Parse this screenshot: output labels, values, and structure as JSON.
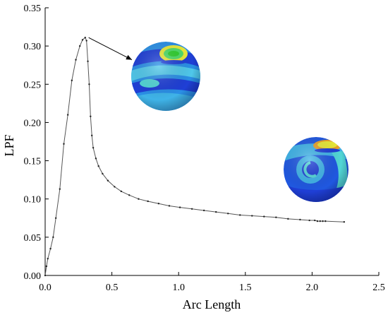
{
  "colors": {
    "line": "#555555",
    "marker": "#222222",
    "axis": "#000000",
    "sphere_dark": "#1f3fd6",
    "sphere_mid": "#2f7fe6",
    "sphere_light": "#3fb3e8",
    "sphere_cyan": "#52d6d6",
    "sphere_green": "#4fdc6a",
    "sphere_yellow": "#e8e83a",
    "sphere_orange": "#e8a12a"
  },
  "chart_data": {
    "type": "line",
    "title": "",
    "xlabel": "Arc Length",
    "ylabel": "LPF",
    "xlim": [
      0.0,
      2.5
    ],
    "ylim": [
      0.0,
      0.35
    ],
    "xticks": [
      "0.0",
      "0.5",
      "1.0",
      "1.5",
      "2.0",
      "2.5"
    ],
    "yticks": [
      "0.00",
      "0.05",
      "0.10",
      "0.15",
      "0.20",
      "0.25",
      "0.30",
      "0.35"
    ],
    "grid": false,
    "legend": "none",
    "series": [
      {
        "x": [
          0.0,
          0.01,
          0.02,
          0.04,
          0.06,
          0.08,
          0.11,
          0.14,
          0.17,
          0.2,
          0.23,
          0.26,
          0.28,
          0.3,
          0.31,
          0.32,
          0.33,
          0.34,
          0.35,
          0.36,
          0.38,
          0.4,
          0.43,
          0.47,
          0.52,
          0.57,
          0.63,
          0.7,
          0.77,
          0.85,
          0.93,
          1.01,
          1.1,
          1.19,
          1.28,
          1.37,
          1.46,
          1.55,
          1.64,
          1.73,
          1.82,
          1.91,
          1.98,
          2.02,
          2.04,
          2.06,
          2.08,
          2.1,
          2.24
        ],
        "y": [
          0.0,
          0.012,
          0.022,
          0.035,
          0.05,
          0.075,
          0.113,
          0.172,
          0.21,
          0.255,
          0.282,
          0.3,
          0.308,
          0.311,
          0.307,
          0.28,
          0.25,
          0.208,
          0.183,
          0.167,
          0.153,
          0.143,
          0.133,
          0.124,
          0.116,
          0.11,
          0.105,
          0.1,
          0.097,
          0.094,
          0.091,
          0.089,
          0.087,
          0.085,
          0.083,
          0.081,
          0.079,
          0.078,
          0.077,
          0.076,
          0.074,
          0.073,
          0.072,
          0.072,
          0.071,
          0.071,
          0.071,
          0.071,
          0.07
        ]
      }
    ],
    "annotation": {
      "arrow_from": [
        0.31,
        0.311
      ],
      "arrow_to": [
        0.65,
        0.282
      ]
    }
  }
}
